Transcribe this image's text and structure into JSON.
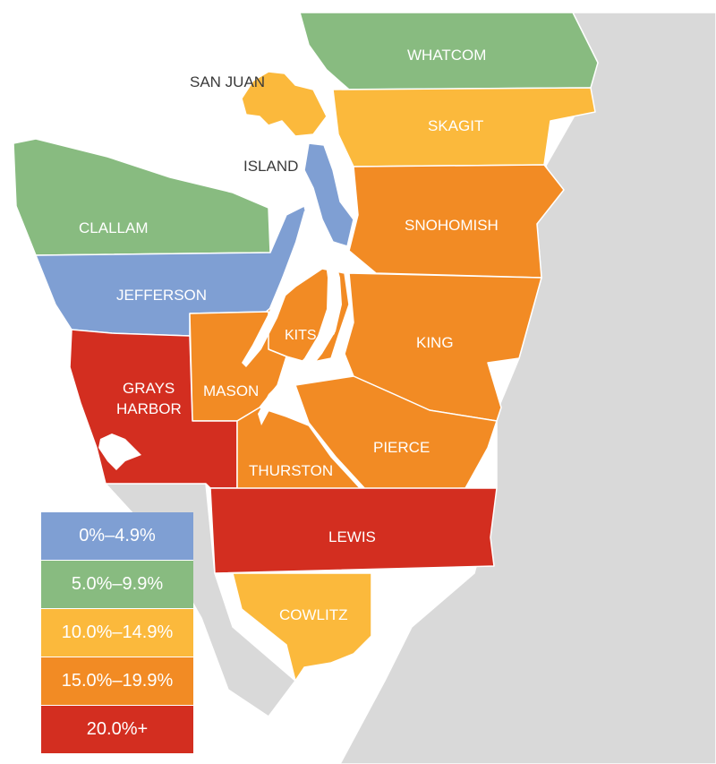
{
  "colors": {
    "blue": "#7f9fd3",
    "green": "#88bb80",
    "yellow": "#fbb93c",
    "orange": "#f28b24",
    "red": "#d32e20",
    "neighbor": "#d9d9d9"
  },
  "counties": {
    "whatcom": "WHATCOM",
    "san_juan": "SAN JUAN",
    "skagit": "SKAGIT",
    "island": "ISLAND",
    "clallam": "CLALLAM",
    "snohomish": "SNOHOMISH",
    "jefferson": "JEFFERSON",
    "kitsap": "KITSAP",
    "king": "KING",
    "mason": "MASON",
    "grays_harbor_1": "GRAYS",
    "grays_harbor_2": "HARBOR",
    "pierce": "PIERCE",
    "thurston": "THURSTON",
    "lewis": "LEWIS",
    "cowlitz": "COWLITZ"
  },
  "legend": [
    {
      "label": "0%–4.9%",
      "color": "#7f9fd3"
    },
    {
      "label": "5.0%–9.9%",
      "color": "#88bb80"
    },
    {
      "label": "10.0%–14.9%",
      "color": "#fbb93c"
    },
    {
      "label": "15.0%–19.9%",
      "color": "#f28b24"
    },
    {
      "label": "20.0%+",
      "color": "#d32e20"
    }
  ]
}
